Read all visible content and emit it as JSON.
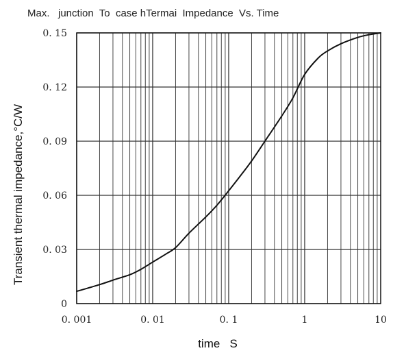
{
  "chart_data": {
    "type": "line",
    "title": "Max.   junction  To  case hTermai  Impedance  Vs. Time",
    "xlabel": "time   S",
    "ylabel": "Transient thermal impedance,°C/W",
    "x_scale": "log",
    "xlim": [
      0.001,
      10
    ],
    "ylim": [
      0,
      0.15
    ],
    "grid": true,
    "x_ticks": [
      0.001,
      0.01,
      0.1,
      1,
      10
    ],
    "x_tick_labels": [
      "0. 001",
      "0. 01",
      "0. 1",
      "1",
      "10"
    ],
    "y_ticks": [
      0,
      0.03,
      0.06,
      0.09,
      0.12,
      0.15
    ],
    "y_tick_labels": [
      "0",
      "0. 03",
      "0. 06",
      "0. 09",
      "0. 12",
      "0. 15"
    ],
    "series": [
      {
        "x": [
          0.001,
          0.002,
          0.003,
          0.005,
          0.007,
          0.01,
          0.015,
          0.02,
          0.03,
          0.05,
          0.07,
          0.1,
          0.15,
          0.2,
          0.3,
          0.5,
          0.7,
          1,
          1.5,
          2,
          3,
          5,
          7,
          10
        ],
        "y": [
          0.0068,
          0.0105,
          0.013,
          0.016,
          0.019,
          0.023,
          0.0275,
          0.031,
          0.039,
          0.048,
          0.0545,
          0.0625,
          0.072,
          0.079,
          0.09,
          0.104,
          0.114,
          0.127,
          0.136,
          0.14,
          0.144,
          0.1475,
          0.149,
          0.15
        ]
      }
    ],
    "line_color": "#111111",
    "grid_color": "#333333"
  }
}
